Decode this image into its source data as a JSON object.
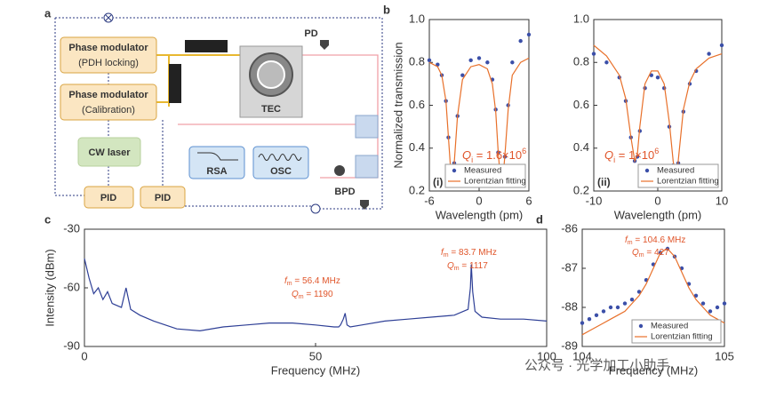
{
  "diagram": {
    "panel_label": "a",
    "pdh_modulator": {
      "title": "Phase modulator",
      "subtitle": "(PDH locking)"
    },
    "cal_modulator": {
      "title": "Phase modulator",
      "subtitle": "(Calibration)"
    },
    "laser": "CW laser",
    "pid_left": "PID",
    "pid_right": "PID",
    "tec": "TEC",
    "pd": "PD",
    "bpd": "BPD",
    "rsa": "RSA",
    "osc": "OSC"
  },
  "watermark": "公众号 · 光学加工小助手",
  "chart_data": [
    {
      "type": "scatter",
      "panel_label": "b",
      "subpanel": "(i)",
      "xlabel": "Wavelength (pm)",
      "ylabel": "Normalized transmission",
      "x": [
        -6,
        -5,
        -4.5,
        -4,
        -3.7,
        -3.4,
        -3.2,
        -3,
        -2.6,
        -2,
        -1,
        0,
        1,
        1.6,
        2,
        2.3,
        2.6,
        2.8,
        3.1,
        3.5,
        4,
        5,
        6
      ],
      "series": [
        {
          "name": "Measured",
          "kind": "marker",
          "color": "#3b4fa8",
          "values": [
            0.81,
            0.79,
            0.74,
            0.62,
            0.45,
            0.27,
            0.25,
            0.33,
            0.55,
            0.74,
            0.81,
            0.82,
            0.8,
            0.72,
            0.58,
            0.38,
            0.24,
            0.23,
            0.36,
            0.6,
            0.8,
            0.9,
            0.93
          ]
        },
        {
          "name": "Lorentzian fitting",
          "kind": "line",
          "color": "#e8702a",
          "values": [
            0.8,
            0.78,
            0.74,
            0.62,
            0.45,
            0.28,
            0.25,
            0.33,
            0.55,
            0.72,
            0.78,
            0.79,
            0.77,
            0.7,
            0.57,
            0.38,
            0.24,
            0.23,
            0.36,
            0.58,
            0.74,
            0.8,
            0.82
          ]
        }
      ],
      "xlim": [
        -6,
        6
      ],
      "xticks": [
        -6,
        0,
        6
      ],
      "ylim": [
        0.2,
        1.0
      ],
      "yticks": [
        0.2,
        0.4,
        0.6,
        0.8,
        {
          "value": 1,
          "label": "1.0"
        }
      ],
      "legend": "lower right",
      "annotations": [
        {
          "color": "#e0552a",
          "parts": [
            {
              "text": "Q"
            },
            {
              "text": "i",
              "sub": true
            },
            {
              "text": " = 1.6×10"
            },
            {
              "text": "6",
              "sup": true
            }
          ]
        }
      ]
    },
    {
      "type": "scatter",
      "subpanel": "(ii)",
      "xlabel": "Wavelength (pm)",
      "x": [
        -10,
        -8,
        -6,
        -5,
        -4.2,
        -3.6,
        -3.2,
        -2.8,
        -2,
        -1,
        0,
        1,
        1.8,
        2.4,
        2.8,
        3.2,
        4,
        5,
        6,
        8,
        10
      ],
      "series": [
        {
          "name": "Measured",
          "kind": "marker",
          "color": "#3b4fa8",
          "values": [
            0.84,
            0.8,
            0.73,
            0.62,
            0.45,
            0.34,
            0.36,
            0.48,
            0.68,
            0.74,
            0.73,
            0.68,
            0.5,
            0.32,
            0.25,
            0.33,
            0.57,
            0.7,
            0.76,
            0.84,
            0.88
          ]
        },
        {
          "name": "Lorentzian fitting",
          "kind": "line",
          "color": "#e8702a",
          "values": [
            0.88,
            0.83,
            0.74,
            0.63,
            0.45,
            0.34,
            0.37,
            0.5,
            0.7,
            0.76,
            0.76,
            0.7,
            0.52,
            0.34,
            0.26,
            0.34,
            0.58,
            0.71,
            0.77,
            0.82,
            0.84
          ]
        }
      ],
      "xlim": [
        -10,
        10
      ],
      "xticks": [
        -10,
        0,
        10
      ],
      "ylim": [
        0.2,
        1.0
      ],
      "yticks": [
        0.2,
        0.4,
        0.6,
        0.8,
        {
          "value": 1,
          "label": "1.0"
        }
      ],
      "legend": "lower right",
      "annotations": [
        {
          "color": "#e0552a",
          "parts": [
            {
              "text": "Q"
            },
            {
              "text": "i",
              "sub": true
            },
            {
              "text": " = 1×10"
            },
            {
              "text": "6",
              "sup": true
            }
          ]
        }
      ]
    },
    {
      "type": "line",
      "panel_label": "c",
      "xlabel": "Frequency (MHz)",
      "ylabel": "Intensity (dBm)",
      "x": [
        0,
        1,
        2,
        3,
        4,
        5,
        6,
        8,
        9,
        10,
        12,
        15,
        20,
        25,
        30,
        35,
        40,
        45,
        50,
        54,
        55,
        55.4,
        56,
        56.4,
        56.8,
        57.5,
        60,
        65,
        70,
        75,
        80,
        83,
        83.5,
        83.7,
        84,
        84.5,
        86,
        90,
        95,
        100
      ],
      "series": [
        {
          "name": "Spectrum",
          "kind": "line",
          "color": "#2e3f96",
          "values": [
            -45,
            -55,
            -63,
            -60,
            -66,
            -62,
            -68,
            -70,
            -60,
            -71,
            -74,
            -77,
            -81,
            -82,
            -80,
            -79,
            -78,
            -78,
            -79,
            -80,
            -80,
            -79,
            -76,
            -73,
            -79,
            -80,
            -79,
            -77,
            -76,
            -75,
            -74,
            -71,
            -60,
            -48,
            -62,
            -72,
            -75,
            -76,
            -76,
            -77
          ]
        }
      ],
      "xlim": [
        0,
        100
      ],
      "xticks": [
        0,
        50,
        100
      ],
      "ylim": [
        -90,
        -30
      ],
      "yticks": [
        -90,
        -60,
        -30
      ],
      "annotations": [
        {
          "color": "#e0552a",
          "parts": [
            {
              "text": "f"
            },
            {
              "text": "m",
              "sub": true
            },
            {
              "text": " = 56.4 MHz"
            }
          ]
        },
        {
          "color": "#e0552a",
          "parts": [
            {
              "text": "Q"
            },
            {
              "text": "m",
              "sub": true
            },
            {
              "text": " = 1190"
            }
          ]
        },
        {
          "color": "#e0552a",
          "parts": [
            {
              "text": "f"
            },
            {
              "text": "m",
              "sub": true
            },
            {
              "text": " = 83.7 MHz"
            }
          ]
        },
        {
          "color": "#e0552a",
          "parts": [
            {
              "text": "Q"
            },
            {
              "text": "m",
              "sub": true
            },
            {
              "text": " = 1117"
            }
          ]
        }
      ]
    },
    {
      "type": "scatter",
      "panel_label": "d",
      "xlabel": "Frequency (MHz)",
      "x": [
        104,
        104.05,
        104.1,
        104.15,
        104.2,
        104.25,
        104.3,
        104.35,
        104.4,
        104.45,
        104.5,
        104.55,
        104.6,
        104.65,
        104.7,
        104.75,
        104.8,
        104.85,
        104.9,
        104.95,
        105
      ],
      "series": [
        {
          "name": "Measured",
          "kind": "marker",
          "color": "#3b4fa8",
          "values": [
            -88.4,
            -88.3,
            -88.2,
            -88.1,
            -88.0,
            -88.0,
            -87.9,
            -87.8,
            -87.6,
            -87.3,
            -86.9,
            -86.6,
            -86.5,
            -86.7,
            -87.0,
            -87.4,
            -87.7,
            -87.9,
            -88.1,
            -88.0,
            -87.9
          ]
        },
        {
          "name": "Lorentzian fitting",
          "kind": "line",
          "color": "#e8702a",
          "values": [
            -88.7,
            -88.6,
            -88.5,
            -88.4,
            -88.3,
            -88.2,
            -88.1,
            -87.9,
            -87.7,
            -87.4,
            -87.0,
            -86.6,
            -86.5,
            -86.7,
            -87.1,
            -87.5,
            -87.8,
            -88.0,
            -88.2,
            -88.3,
            -88.4
          ]
        }
      ],
      "xlim": [
        104,
        105
      ],
      "xticks": [
        104,
        105
      ],
      "ylim": [
        -89,
        -86
      ],
      "yticks": [
        -89,
        -88,
        -87,
        -86
      ],
      "legend": "lower right",
      "annotations": [
        {
          "color": "#e0552a",
          "parts": [
            {
              "text": "f"
            },
            {
              "text": "m",
              "sub": true
            },
            {
              "text": " = 104.6 MHz"
            }
          ]
        },
        {
          "color": "#e0552a",
          "parts": [
            {
              "text": "Q"
            },
            {
              "text": "m",
              "sub": true
            },
            {
              "text": " = 427"
            }
          ]
        }
      ]
    }
  ]
}
